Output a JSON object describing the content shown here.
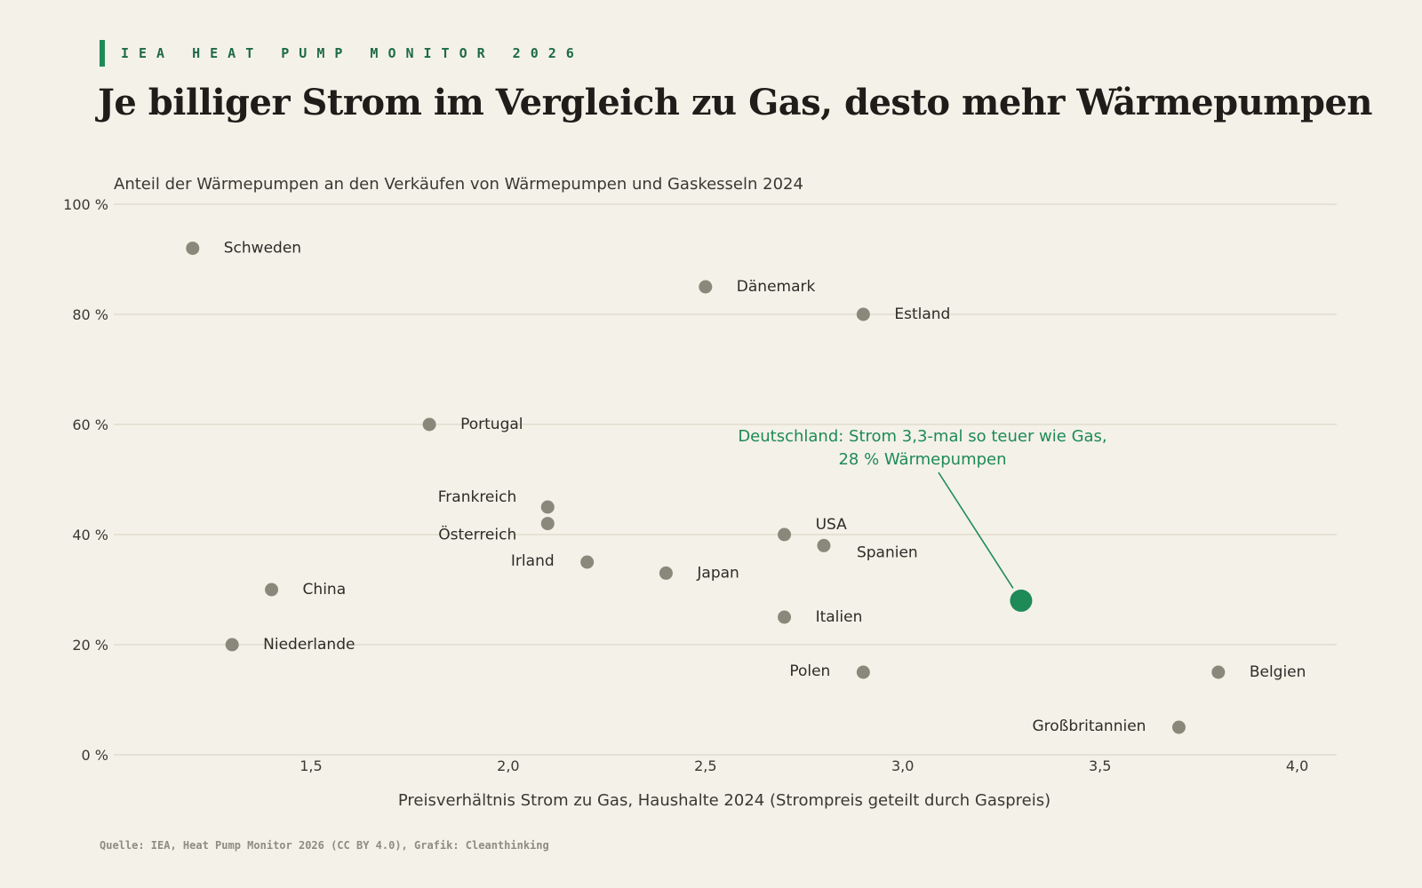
{
  "header": {
    "kicker": "IEA HEAT PUMP MONITOR 2026",
    "title": "Je billiger Strom im Vergleich zu Gas, desto mehr Wärmepumpen"
  },
  "footer": {
    "source": "Quelle: IEA, Heat Pump Monitor 2026 (CC BY 4.0), Grafik: Cleanthinking"
  },
  "colors": {
    "background": "#f4f1e8",
    "point": "#8a887b",
    "highlight": "#1e8a57",
    "grid": "#dcd8c8"
  },
  "chart_data": {
    "type": "scatter",
    "title": "",
    "ylabel": "Anteil der Wärmepumpen an den Verkäufen von Wärmepumpen und Gaskesseln 2024",
    "xlabel": "Preisverhältnis Strom zu Gas, Haushalte 2024 (Strompreis geteilt durch Gaspreis)",
    "xlim": [
      1.0,
      4.1
    ],
    "ylim": [
      0,
      100
    ],
    "x_ticks": [
      1.5,
      2.0,
      2.5,
      3.0,
      3.5,
      4.0
    ],
    "x_tick_labels": [
      "1,5",
      "2,0",
      "2,5",
      "3,0",
      "3,5",
      "4,0"
    ],
    "y_ticks": [
      0,
      20,
      40,
      60,
      80,
      100
    ],
    "y_tick_labels": [
      "0 %",
      "20 %",
      "40 %",
      "60 %",
      "80 %",
      "100 %"
    ],
    "grid": "horizontal",
    "points": [
      {
        "label": "Schweden",
        "x": 1.2,
        "y": 92,
        "side": "right"
      },
      {
        "label": "Dänemark",
        "x": 2.5,
        "y": 85,
        "side": "right"
      },
      {
        "label": "Estland",
        "x": 2.9,
        "y": 80,
        "side": "right"
      },
      {
        "label": "Portugal",
        "x": 1.8,
        "y": 60,
        "side": "right"
      },
      {
        "label": "Frankreich",
        "x": 2.1,
        "y": 45,
        "side": "upper-left"
      },
      {
        "label": "Österreich",
        "x": 2.1,
        "y": 42,
        "side": "lower-left"
      },
      {
        "label": "USA",
        "x": 2.7,
        "y": 40,
        "side": "upper-right"
      },
      {
        "label": "Spanien",
        "x": 2.8,
        "y": 38,
        "side": "lower-right"
      },
      {
        "label": "Irland",
        "x": 2.2,
        "y": 35,
        "side": "left"
      },
      {
        "label": "Japan",
        "x": 2.4,
        "y": 33,
        "side": "right"
      },
      {
        "label": "China",
        "x": 1.4,
        "y": 30,
        "side": "right"
      },
      {
        "label": "Italien",
        "x": 2.7,
        "y": 25,
        "side": "right"
      },
      {
        "label": "Niederlande",
        "x": 1.3,
        "y": 20,
        "side": "right"
      },
      {
        "label": "Polen",
        "x": 2.9,
        "y": 15,
        "side": "left"
      },
      {
        "label": "Belgien",
        "x": 3.8,
        "y": 15,
        "side": "right"
      },
      {
        "label": "Großbritannien",
        "x": 3.7,
        "y": 5,
        "side": "left"
      }
    ],
    "highlight": {
      "label": "Deutschland",
      "x": 3.3,
      "y": 28,
      "annotation": [
        "Deutschland: Strom 3,3-mal so teuer wie Gas,",
        "28 % Wärmepumpen"
      ]
    }
  }
}
